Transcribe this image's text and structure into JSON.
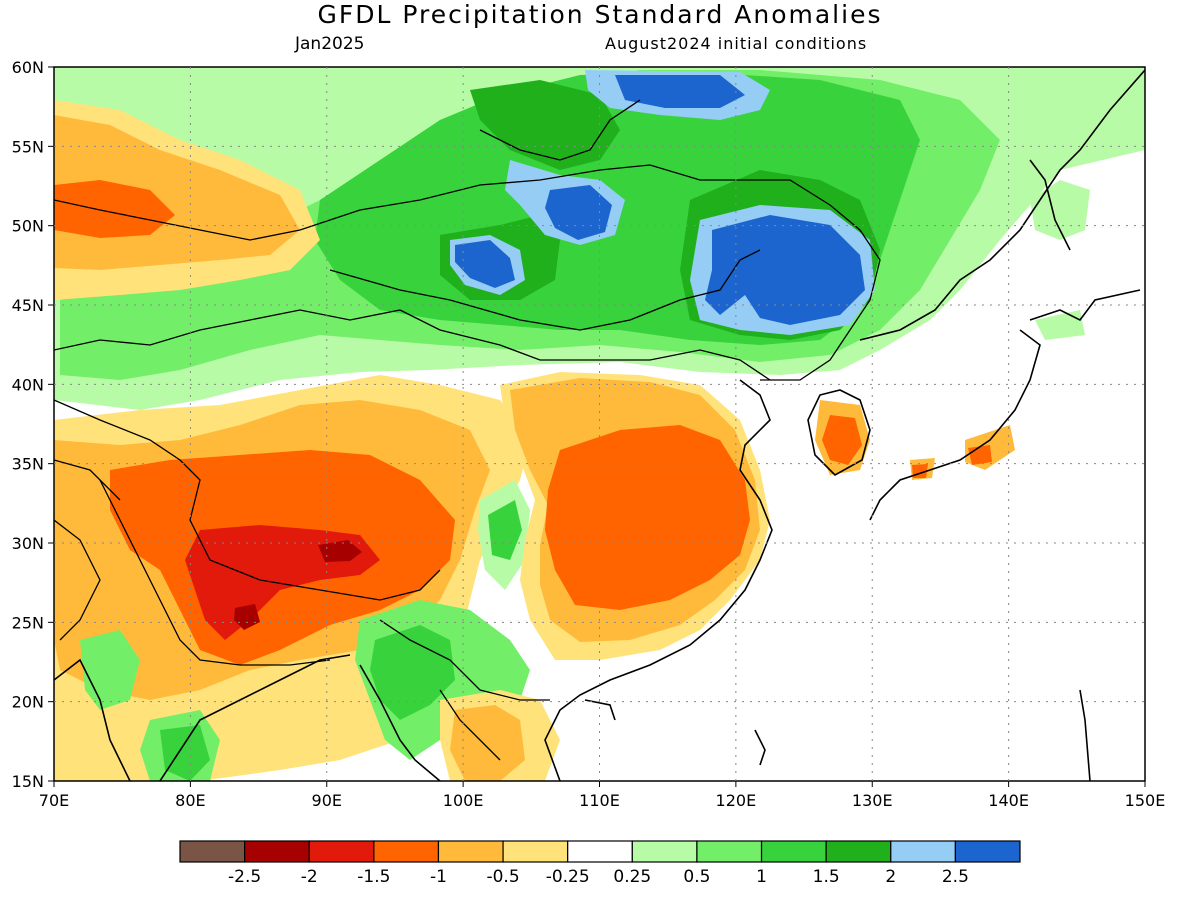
{
  "header": {
    "title": "GFDL Precipitation Standard Anomalies",
    "valid_month": "Jan2025",
    "initial_conditions": "August2024 initial conditions"
  },
  "map": {
    "lon_range": [
      70,
      150
    ],
    "lat_range": [
      15,
      60
    ],
    "lon_ticks": [
      "70E",
      "80E",
      "90E",
      "100E",
      "110E",
      "120E",
      "130E",
      "140E",
      "150E"
    ],
    "lat_ticks": [
      "15N",
      "20N",
      "25N",
      "30N",
      "35N",
      "40N",
      "45N",
      "50N",
      "55N",
      "60N"
    ],
    "grid": true
  },
  "legend": {
    "colors": [
      "#7a5545",
      "#a60000",
      "#e21a0b",
      "#ff6400",
      "#ffba3c",
      "#ffe37a",
      "#ffffff",
      "#b8fba6",
      "#73ee69",
      "#37d23c",
      "#1fb01c",
      "#96cdf5",
      "#1c65cf"
    ],
    "labels": [
      "-2.5",
      "-2",
      "-1.5",
      "-1",
      "-0.5",
      "-0.25",
      "0.25",
      "0.5",
      "1",
      "1.5",
      "2",
      "2.5"
    ]
  }
}
